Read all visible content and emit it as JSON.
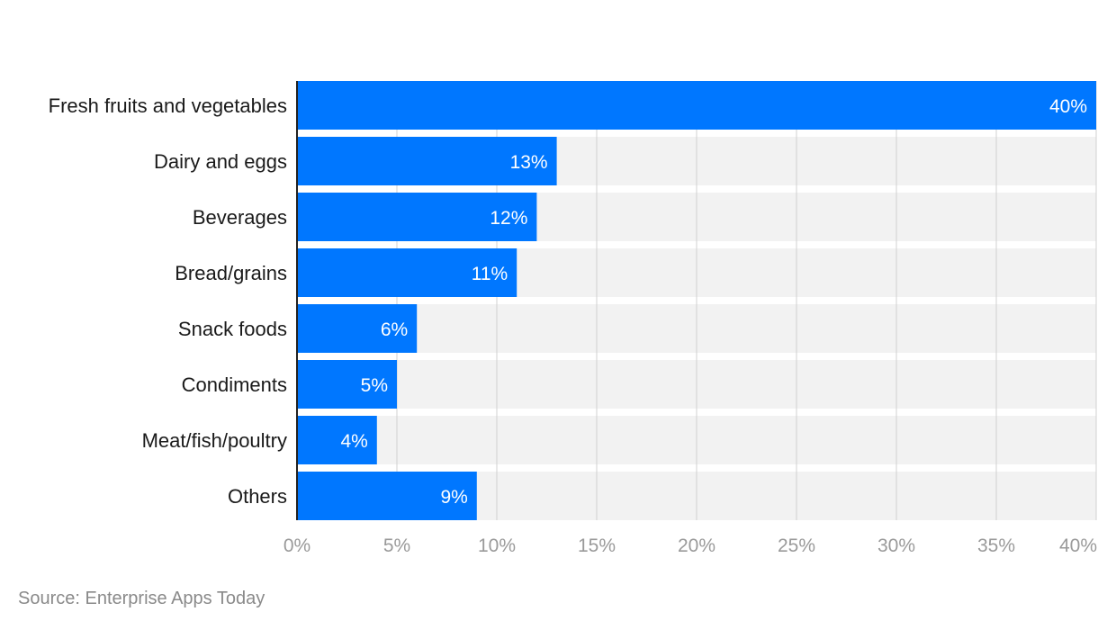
{
  "chart_data": {
    "type": "bar",
    "orientation": "horizontal",
    "categories": [
      "Fresh fruits and vegetables",
      "Dairy and eggs",
      "Beverages",
      "Bread/grains",
      "Snack foods",
      "Condiments",
      "Meat/fish/poultry",
      "Others"
    ],
    "values": [
      40,
      13,
      12,
      11,
      6,
      5,
      4,
      9
    ],
    "value_labels": [
      "40%",
      "13%",
      "12%",
      "11%",
      "6%",
      "5%",
      "4%",
      "9%"
    ],
    "x_ticks": [
      0,
      5,
      10,
      15,
      20,
      25,
      30,
      35,
      40
    ],
    "x_tick_labels": [
      "0%",
      "5%",
      "10%",
      "15%",
      "20%",
      "25%",
      "30%",
      "35%",
      "40%"
    ],
    "xlim": [
      0,
      40
    ],
    "grid": true,
    "legend": "none",
    "colors": {
      "bar": "#0077ff",
      "band": "#f2f2f2",
      "grid": "#d0d0d0",
      "axis": "#222222"
    }
  },
  "source": "Source: Enterprise Apps Today"
}
